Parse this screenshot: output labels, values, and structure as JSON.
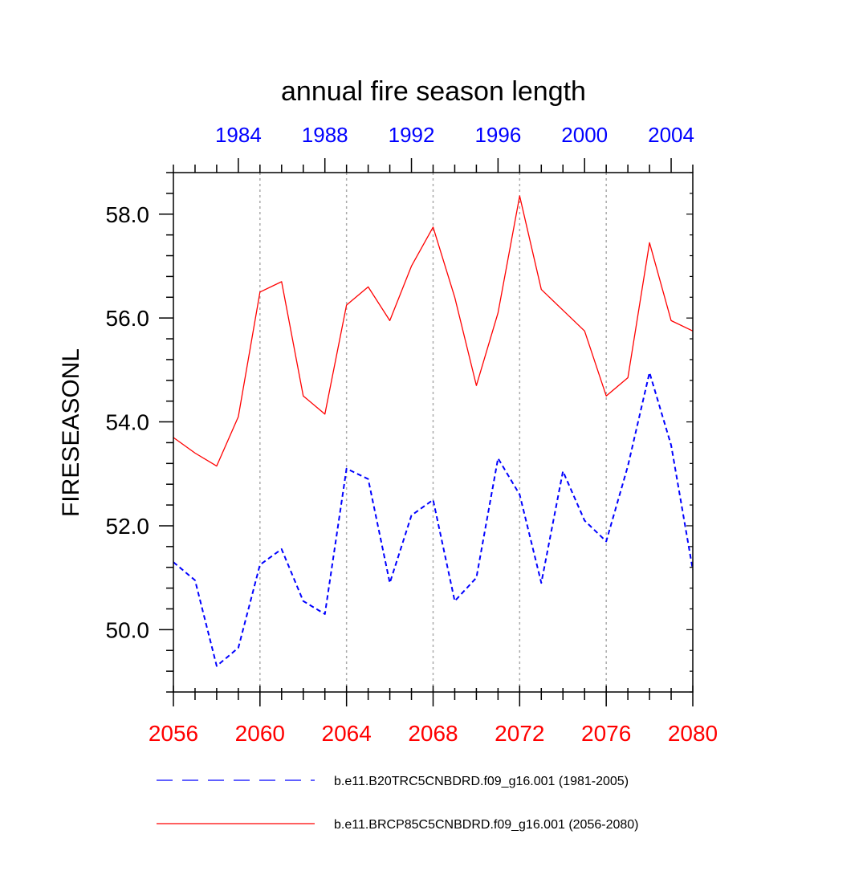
{
  "chart_data": {
    "type": "line",
    "title": "annual fire season length",
    "ylabel": "FIRESEASONL",
    "xlabel": "",
    "ylim": [
      48.8,
      58.8
    ],
    "y_ticks": [
      50.0,
      52.0,
      54.0,
      56.0,
      58.0
    ],
    "y_tick_labels": [
      "50.0",
      "52.0",
      "54.0",
      "56.0",
      "58.0"
    ],
    "y_minor_step": 0.4,
    "bottom_axis": {
      "range": [
        2056,
        2080
      ],
      "ticks": [
        2056,
        2060,
        2064,
        2068,
        2072,
        2076,
        2080
      ],
      "tick_labels": [
        "2056",
        "2060",
        "2064",
        "2068",
        "2072",
        "2076",
        "2080"
      ],
      "color": "#ff0000"
    },
    "top_axis": {
      "range": [
        1981,
        2005
      ],
      "ticks": [
        1984,
        1988,
        1992,
        1996,
        2000,
        2004
      ],
      "tick_labels": [
        "1984",
        "1988",
        "1992",
        "1996",
        "2000",
        "2004"
      ],
      "color": "#0000ff"
    },
    "grid": {
      "vertical_at": [
        2060,
        2064,
        2068,
        2072,
        2076
      ],
      "style": "dotted",
      "color": "#aaaaaa"
    },
    "series": [
      {
        "name": "b.e11.B20TRC5CNBDRD.f09_g16.001 (1981-2005)",
        "axis": "top",
        "color": "#0000ff",
        "dash": "dashed",
        "x": [
          1981,
          1982,
          1983,
          1984,
          1985,
          1986,
          1987,
          1988,
          1989,
          1990,
          1991,
          1992,
          1993,
          1994,
          1995,
          1996,
          1997,
          1998,
          1999,
          2000,
          2001,
          2002,
          2003,
          2004,
          2005
        ],
        "values": [
          51.3,
          50.95,
          49.3,
          49.65,
          51.25,
          51.55,
          50.55,
          50.3,
          53.1,
          52.9,
          50.9,
          52.2,
          52.5,
          50.55,
          51.0,
          53.3,
          52.6,
          50.9,
          53.05,
          52.1,
          51.7,
          53.15,
          54.95,
          53.55,
          51.15
        ]
      },
      {
        "name": "b.e11.BRCP85C5CNBDRD.f09_g16.001 (2056-2080)",
        "axis": "bottom",
        "color": "#ff0000",
        "dash": "solid",
        "x": [
          2056,
          2057,
          2058,
          2059,
          2060,
          2061,
          2062,
          2063,
          2064,
          2065,
          2066,
          2067,
          2068,
          2069,
          2070,
          2071,
          2072,
          2073,
          2074,
          2075,
          2076,
          2077,
          2078,
          2079,
          2080
        ],
        "values": [
          53.7,
          53.4,
          53.15,
          54.1,
          56.5,
          56.7,
          54.5,
          54.15,
          56.25,
          56.6,
          55.95,
          57.0,
          57.75,
          56.4,
          54.7,
          56.1,
          58.35,
          56.55,
          56.15,
          55.75,
          54.5,
          54.85,
          57.45,
          55.95,
          55.75
        ]
      }
    ],
    "legend": {
      "placement": "bottom",
      "entries": [
        {
          "label": "b.e11.B20TRC5CNBDRD.f09_g16.001 (1981-2005)",
          "color": "#0000ff",
          "dash": "dashed"
        },
        {
          "label": "b.e11.BRCP85C5CNBDRD.f09_g16.001 (2056-2080)",
          "color": "#ff0000",
          "dash": "solid"
        }
      ]
    }
  }
}
